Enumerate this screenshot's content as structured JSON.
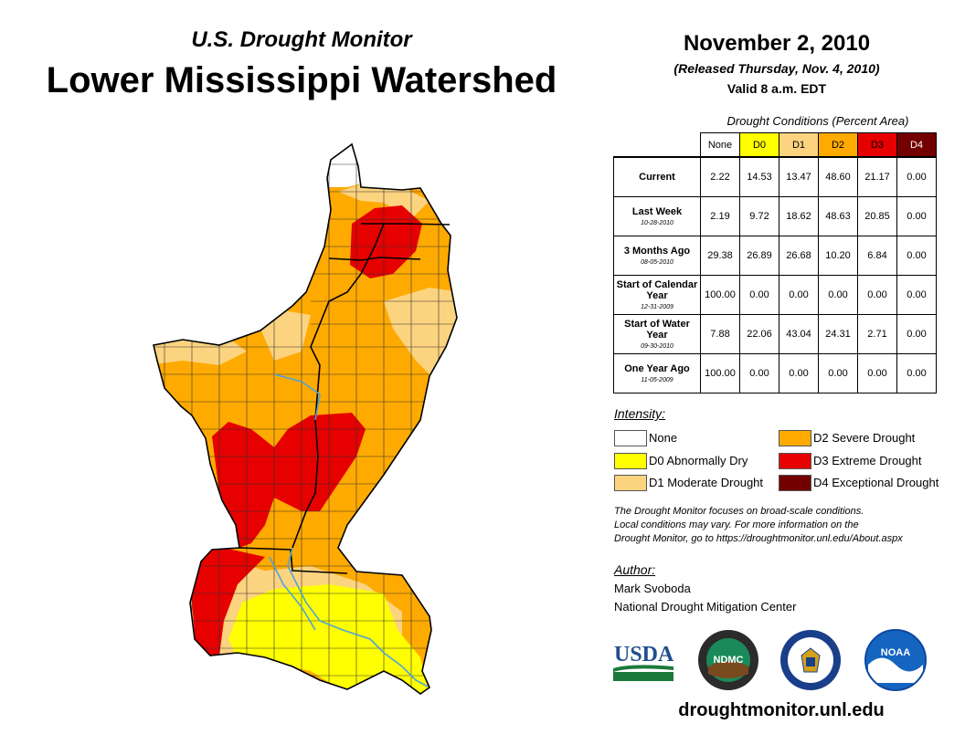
{
  "header": {
    "subtitle": "U.S. Drought Monitor",
    "title": "Lower Mississippi Watershed",
    "date": "November 2, 2010",
    "released": "(Released Thursday, Nov. 4, 2010)",
    "valid": "Valid 8 a.m. EDT"
  },
  "table": {
    "caption": "Drought Conditions (Percent Area)",
    "columns": [
      "None",
      "D0",
      "D1",
      "D2",
      "D3",
      "D4"
    ],
    "column_colors": [
      "#ffffff",
      "#ffff00",
      "#fcd37f",
      "#ffaa00",
      "#e60000",
      "#730000"
    ],
    "rows": [
      {
        "label": "Current",
        "date": "",
        "values": [
          "2.22",
          "14.53",
          "13.47",
          "48.60",
          "21.17",
          "0.00"
        ]
      },
      {
        "label": "Last Week",
        "date": "10-28-2010",
        "values": [
          "2.19",
          "9.72",
          "18.62",
          "48.63",
          "20.85",
          "0.00"
        ]
      },
      {
        "label": "3 Months Ago",
        "date": "08-05-2010",
        "values": [
          "29.38",
          "26.89",
          "26.68",
          "10.20",
          "6.84",
          "0.00"
        ]
      },
      {
        "label": "Start of Calendar Year",
        "date": "12-31-2009",
        "values": [
          "100.00",
          "0.00",
          "0.00",
          "0.00",
          "0.00",
          "0.00"
        ]
      },
      {
        "label": "Start of Water Year",
        "date": "09-30-2010",
        "values": [
          "7.88",
          "22.06",
          "43.04",
          "24.31",
          "2.71",
          "0.00"
        ]
      },
      {
        "label": "One Year Ago",
        "date": "11-05-2009",
        "values": [
          "100.00",
          "0.00",
          "0.00",
          "0.00",
          "0.00",
          "0.00"
        ]
      }
    ]
  },
  "legend": {
    "title": "Intensity:",
    "items": [
      {
        "label": "None",
        "color": "#ffffff"
      },
      {
        "label": "D0 Abnormally Dry",
        "color": "#ffff00"
      },
      {
        "label": "D1 Moderate Drought",
        "color": "#fcd37f"
      },
      {
        "label": "D2 Severe Drought",
        "color": "#ffaa00"
      },
      {
        "label": "D3 Extreme Drought",
        "color": "#e60000"
      },
      {
        "label": "D4 Exceptional Drought",
        "color": "#730000"
      }
    ]
  },
  "note": {
    "line1": "The Drought Monitor focuses on broad-scale conditions.",
    "line2": "Local conditions may vary. For more information on the",
    "line3": "Drought Monitor, go to https://droughtmonitor.unl.edu/About.aspx"
  },
  "author": {
    "title": "Author:",
    "name": "Mark Svoboda",
    "org": "National Drought Mitigation Center"
  },
  "logos": {
    "usda": "USDA",
    "ndmc": "NDMC",
    "noaa": "NOAA"
  },
  "website": "droughtmonitor.unl.edu",
  "map_colors": {
    "none": "#ffffff",
    "d0": "#ffff00",
    "d1": "#fcd37f",
    "d2": "#ffaa00",
    "d3": "#e60000",
    "water": "#4fa3d8"
  }
}
